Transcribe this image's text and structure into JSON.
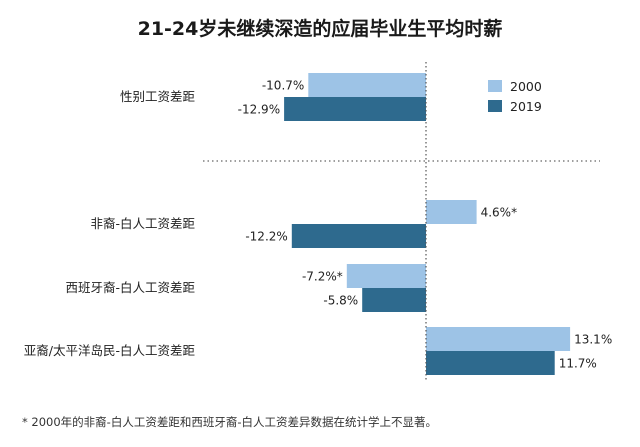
{
  "chart_data": {
    "type": "bar",
    "orientation": "horizontal",
    "title": "21-24岁未继续深造的应届毕业生平均时薪",
    "categories": [
      "性别工资差距",
      "非裔-白人工资差距",
      "西班牙裔-白人工资差距",
      "亚裔/太平洋岛民-白人工资差距"
    ],
    "series": [
      {
        "name": "2000",
        "color": "#9dc3e6",
        "values": [
          -10.7,
          4.6,
          -7.2,
          13.1
        ],
        "labels": [
          "-10.7%",
          "4.6%*",
          "-7.2%*",
          "13.1%"
        ]
      },
      {
        "name": "2019",
        "color": "#2e6a8e",
        "values": [
          -12.9,
          -12.2,
          -5.8,
          11.7
        ],
        "labels": [
          "-12.9%",
          "-12.2%",
          "-5.8%",
          "11.7%"
        ]
      }
    ],
    "xlim": [
      -16,
      16
    ],
    "legend_position": "top-right",
    "separator_after_category": 0,
    "grid": false
  },
  "footnote": "* 2000年的非裔-白人工资差距和西班牙裔-白人工资差异数据在统计学上不显著。"
}
